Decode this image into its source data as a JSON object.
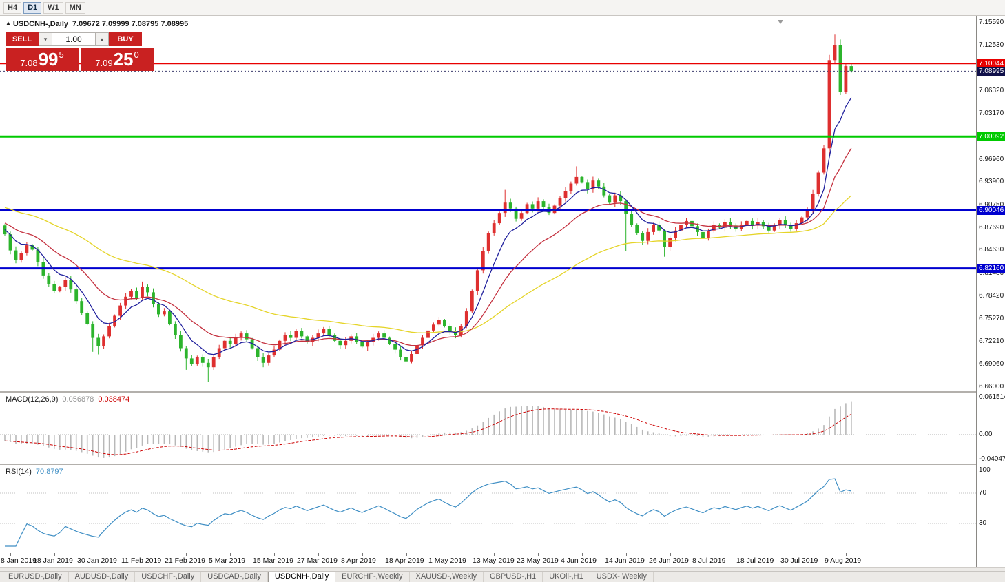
{
  "toolbar": {
    "timeframes": [
      "H4",
      "D1",
      "W1",
      "MN"
    ],
    "active": "D1"
  },
  "chart_header": {
    "arrow": "▲",
    "title": "USDCNH-,Daily",
    "ohlc": "7.09672 7.09999 7.08795 7.08995"
  },
  "trade_panel": {
    "sell_label": "SELL",
    "buy_label": "BUY",
    "volume": "1.00",
    "vol_down_glyph": "▾",
    "vol_up_glyph": "▴",
    "sell_price": {
      "prefix": "7.08",
      "big": "99",
      "sup": "5"
    },
    "buy_price": {
      "prefix": "7.09",
      "big": "25",
      "sup": "0"
    }
  },
  "levels": [
    {
      "price": 7.10044,
      "color": "#e80000",
      "width": 2
    },
    {
      "price": 7.00092,
      "color": "#00ca00",
      "width": 3
    },
    {
      "price": 6.90046,
      "color": "#0000cf",
      "width": 3
    },
    {
      "price": 6.8216,
      "color": "#0000cf",
      "width": 3
    }
  ],
  "bid_line": {
    "price": 7.08995,
    "color": "#3c3c6e"
  },
  "price_axis": {
    "ticks": [
      "7.15590",
      "7.12530",
      "7.06320",
      "7.03170",
      "6.96960",
      "6.93900",
      "6.90750",
      "6.87690",
      "6.84630",
      "6.81480",
      "6.78420",
      "6.75270",
      "6.72210",
      "6.69060",
      "6.66000"
    ],
    "line_labels": [
      {
        "label": "7.10044",
        "price": 7.10044,
        "bg": "#e80000"
      },
      {
        "label": "7.08995",
        "price": 7.08995,
        "bg": "#10104a"
      },
      {
        "label": "7.00092",
        "price": 7.00092,
        "bg": "#00ca00"
      },
      {
        "label": "6.90046",
        "price": 6.90046,
        "bg": "#0000cf"
      },
      {
        "label": "6.82160",
        "price": 6.8216,
        "bg": "#0000cf"
      }
    ]
  },
  "macd": {
    "header": {
      "label": "MACD(12,26,9)",
      "value_main": "0.056878",
      "value_signal": "0.038474"
    },
    "histogram_color": "#b8b8b8",
    "signal_color": "#cc0000",
    "main_value_color": "#8f8f8f",
    "axis_labels": [
      {
        "label": "0.061514",
        "value": 0.061514
      },
      {
        "label": "0.00",
        "value": 0.0
      },
      {
        "label": "-0.04047",
        "value": -0.04047
      }
    ]
  },
  "rsi": {
    "header": {
      "label": "RSI(14)",
      "value": "70.8797"
    },
    "line_color": "#3e8ec4",
    "axis_labels": [
      {
        "label": "100",
        "value": 100
      },
      {
        "label": "70",
        "value": 70
      },
      {
        "label": "30",
        "value": 30
      }
    ]
  },
  "chart_data": {
    "type": "candlestick",
    "symbol": "USDCNH-",
    "timeframe": "Daily",
    "up_color": "#de2f2f",
    "down_color": "#2cb42c",
    "price_range": [
      6.66,
      7.1559
    ],
    "closes": [
      6.868,
      6.846,
      6.833,
      6.842,
      6.853,
      6.847,
      6.83,
      6.812,
      6.8,
      6.791,
      6.796,
      6.806,
      6.793,
      6.777,
      6.761,
      6.746,
      6.727,
      6.716,
      6.729,
      6.743,
      6.757,
      6.771,
      6.783,
      6.791,
      6.781,
      6.796,
      6.789,
      6.773,
      6.759,
      6.763,
      6.746,
      6.731,
      6.713,
      6.699,
      6.691,
      6.701,
      6.693,
      6.687,
      6.701,
      6.713,
      6.723,
      6.719,
      6.727,
      6.733,
      6.725,
      6.713,
      6.701,
      6.693,
      6.703,
      6.711,
      6.723,
      6.731,
      6.727,
      6.736,
      6.729,
      6.721,
      6.727,
      6.733,
      6.739,
      6.731,
      6.723,
      6.717,
      6.723,
      6.729,
      6.721,
      6.715,
      6.721,
      6.727,
      6.733,
      6.727,
      6.719,
      6.711,
      6.701,
      6.695,
      6.705,
      6.717,
      6.727,
      6.737,
      6.745,
      6.751,
      6.743,
      6.736,
      6.731,
      6.743,
      6.763,
      6.791,
      6.819,
      6.845,
      6.869,
      6.883,
      6.897,
      6.911,
      6.903,
      6.889,
      6.897,
      6.909,
      6.903,
      6.913,
      6.905,
      6.897,
      6.907,
      6.917,
      6.927,
      6.937,
      6.946,
      6.939,
      6.929,
      6.941,
      6.933,
      6.921,
      6.911,
      6.921,
      6.913,
      6.896,
      6.881,
      6.869,
      6.859,
      6.871,
      6.881,
      6.873,
      6.851,
      6.863,
      6.873,
      6.881,
      6.886,
      6.879,
      6.871,
      6.863,
      6.873,
      6.881,
      6.877,
      6.885,
      6.88,
      6.875,
      6.881,
      6.886,
      6.88,
      6.885,
      6.879,
      6.873,
      6.881,
      6.887,
      6.881,
      6.875,
      6.883,
      6.891,
      6.901,
      6.923,
      6.952,
      6.985,
      7.105,
      7.125,
      7.062,
      7.09672,
      7.08995
    ],
    "wick_overrides": {
      "16": {
        "l": 6.708
      },
      "17": {
        "l": 6.7045
      },
      "25": {
        "h": 6.8035
      },
      "33": {
        "l": 6.6835
      },
      "37": {
        "l": 6.667
      },
      "47": {
        "l": 6.687
      },
      "73": {
        "l": 6.688
      },
      "91": {
        "h": 6.9285
      },
      "104": {
        "h": 6.9605
      },
      "113": {
        "l": 6.8455
      },
      "120": {
        "l": 6.8375
      },
      "150": {
        "h": 7.112,
        "l": 6.976
      },
      "151": {
        "h": 7.1397
      },
      "152": {
        "h": 7.133
      },
      "154": {
        "h": 7.09999,
        "l": 7.08795
      }
    },
    "moving_averages": [
      {
        "name": "slow",
        "period": 50,
        "color": "#e5d428"
      },
      {
        "name": "medium",
        "period": 18,
        "color": "#c4303e"
      },
      {
        "name": "fast",
        "period": 7,
        "color": "#20209d"
      }
    ],
    "date_ticks": [
      {
        "label": "8 Jan 2019",
        "i": 1
      },
      {
        "label": "18 Jan 2019",
        "i": 9
      },
      {
        "label": "30 Jan 2019",
        "i": 17
      },
      {
        "label": "11 Feb 2019",
        "i": 25
      },
      {
        "label": "21 Feb 2019",
        "i": 33
      },
      {
        "label": "5 Mar 2019",
        "i": 41
      },
      {
        "label": "15 Mar 2019",
        "i": 49
      },
      {
        "label": "27 Mar 2019",
        "i": 57
      },
      {
        "label": "8 Apr 2019",
        "i": 65
      },
      {
        "label": "18 Apr 2019",
        "i": 73
      },
      {
        "label": "1 May 2019",
        "i": 81
      },
      {
        "label": "13 May 2019",
        "i": 89
      },
      {
        "label": "23 May 2019",
        "i": 97
      },
      {
        "label": "4 Jun 2019",
        "i": 105
      },
      {
        "label": "14 Jun 2019",
        "i": 113
      },
      {
        "label": "26 Jun 2019",
        "i": 121
      },
      {
        "label": "8 Jul 2019",
        "i": 129
      },
      {
        "label": "18 Jul 2019",
        "i": 137
      },
      {
        "label": "30 Jul 2019",
        "i": 145
      },
      {
        "label": "9 Aug 2019",
        "i": 153
      }
    ]
  },
  "tabs": [
    {
      "label": "EURUSD-,Daily",
      "active": false
    },
    {
      "label": "AUDUSD-,Daily",
      "active": false
    },
    {
      "label": "USDCHF-,Daily",
      "active": false
    },
    {
      "label": "USDCAD-,Daily",
      "active": false
    },
    {
      "label": "USDCNH-,Daily",
      "active": true
    },
    {
      "label": "EURCHF-,Weekly",
      "active": false
    },
    {
      "label": "XAUUSD-,Weekly",
      "active": false
    },
    {
      "label": "GBPUSD-,H1",
      "active": false
    },
    {
      "label": "UKOil-,H1",
      "active": false
    },
    {
      "label": "USDX-,Weekly",
      "active": false
    }
  ]
}
